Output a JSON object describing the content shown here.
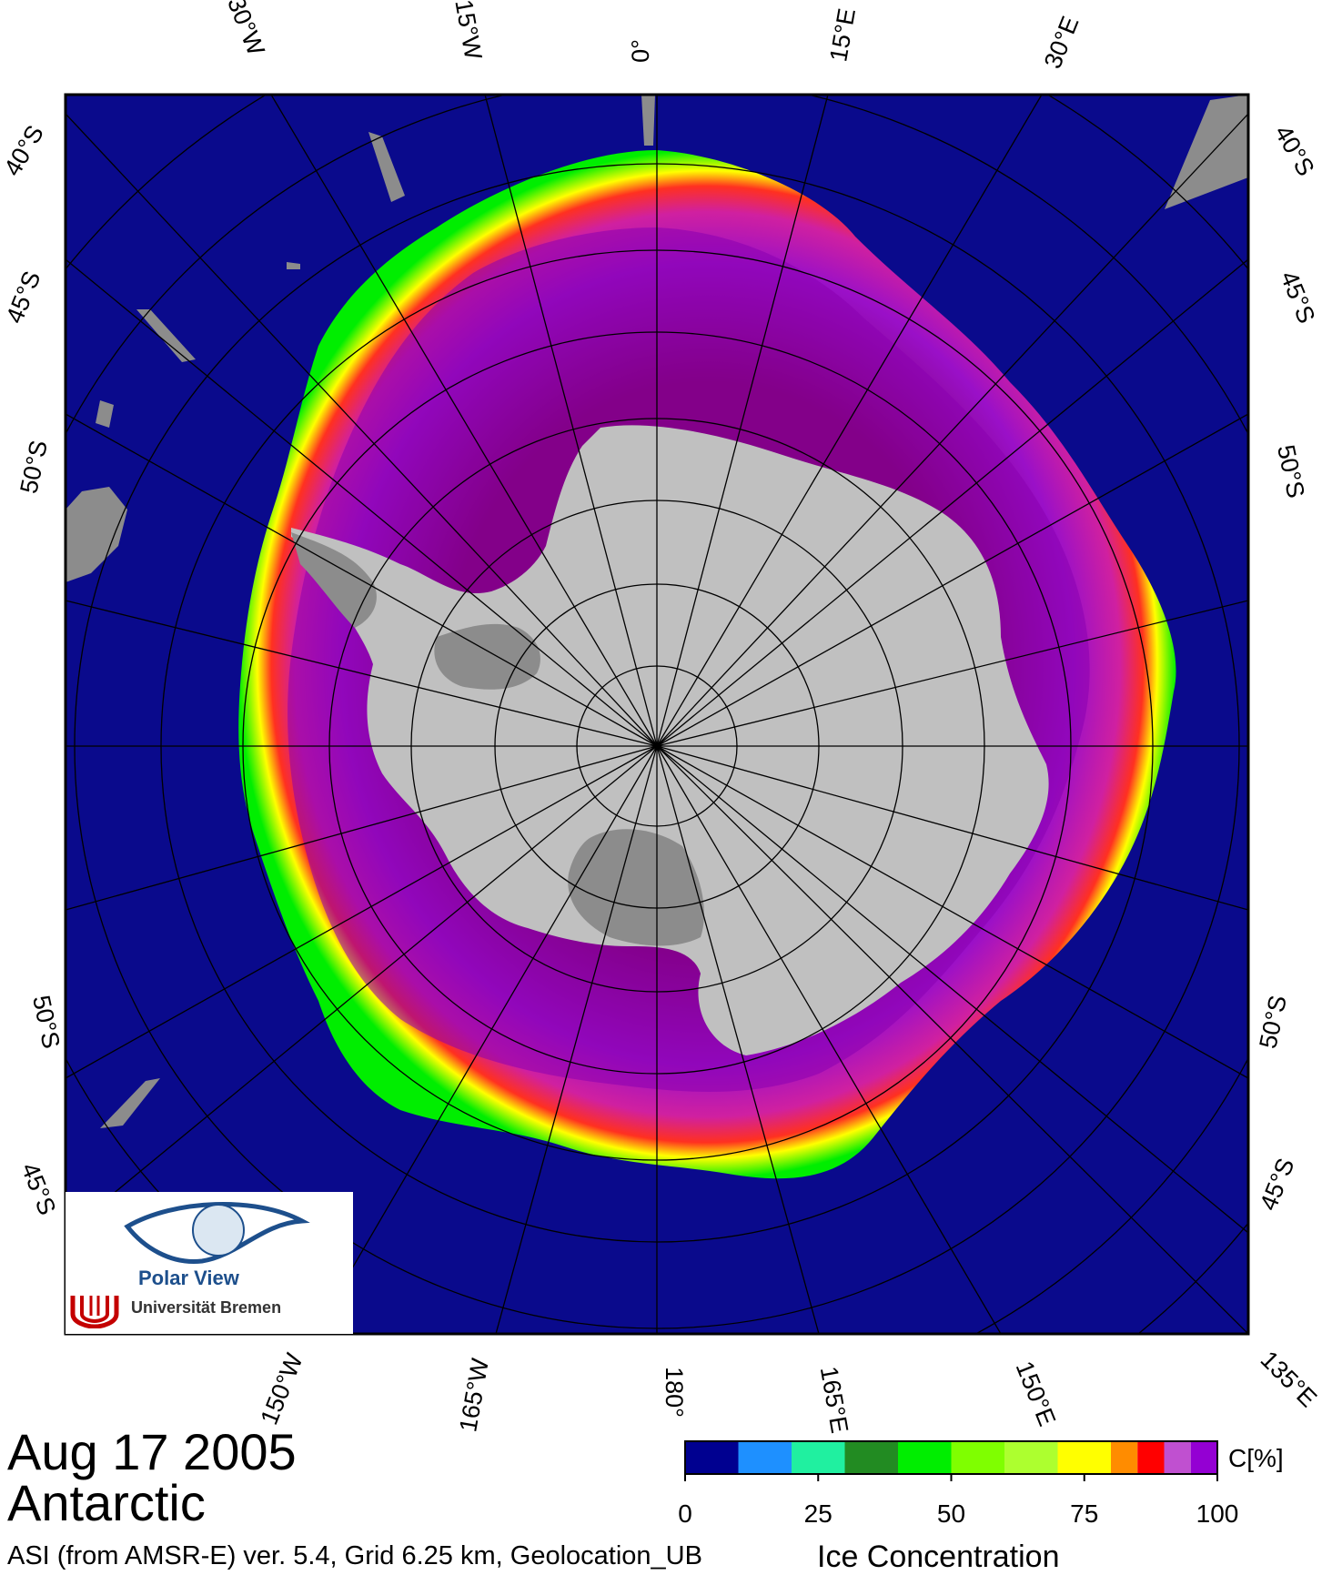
{
  "header": {
    "date": "Aug 17 2005",
    "region": "Antarctic"
  },
  "footer": {
    "product": "ASI (from AMSR-E) ver. 5.4,  Grid 6.25 km, Geolocation_UB",
    "variable": "Ice Concentration"
  },
  "logo": {
    "title": "Polar View",
    "institution": "Universität Bremen"
  },
  "map": {
    "projection": "south polar stereographic",
    "top_longitude_labels": [
      "30°W",
      "15°W",
      "0°",
      "15°E",
      "30°E"
    ],
    "bottom_longitude_labels": [
      "150°W",
      "165°W",
      "180°",
      "165°E",
      "150°E",
      "135°E"
    ],
    "left_latitude_labels": [
      "40°S",
      "45°S",
      "50°S",
      "50°S",
      "45°S"
    ],
    "right_latitude_labels": [
      "40°S",
      "45°S",
      "50°S",
      "50°S",
      "45°S"
    ],
    "colors": {
      "ocean": "#0a0a8c",
      "land": "#c0c0c0",
      "ice_shelf": "#8c8c8c",
      "frame": "#000000"
    }
  },
  "legend": {
    "unit_label": "C[%]",
    "tick_labels": [
      "0",
      "25",
      "50",
      "75",
      "100"
    ],
    "range": [
      0,
      100
    ],
    "bins": [
      {
        "from": 0,
        "to": 10,
        "color": "#000090"
      },
      {
        "from": 10,
        "to": 20,
        "color": "#1e90ff"
      },
      {
        "from": 20,
        "to": 30,
        "color": "#20f0a0"
      },
      {
        "from": 30,
        "to": 40,
        "color": "#228b22"
      },
      {
        "from": 40,
        "to": 50,
        "color": "#00ee00"
      },
      {
        "from": 50,
        "to": 60,
        "color": "#7fff00"
      },
      {
        "from": 60,
        "to": 70,
        "color": "#adff2f"
      },
      {
        "from": 70,
        "to": 80,
        "color": "#ffff00"
      },
      {
        "from": 80,
        "to": 85,
        "color": "#ff8c00"
      },
      {
        "from": 85,
        "to": 90,
        "color": "#ff0000"
      },
      {
        "from": 90,
        "to": 95,
        "color": "#c050d0"
      },
      {
        "from": 95,
        "to": 100,
        "color": "#9400d3"
      }
    ]
  }
}
